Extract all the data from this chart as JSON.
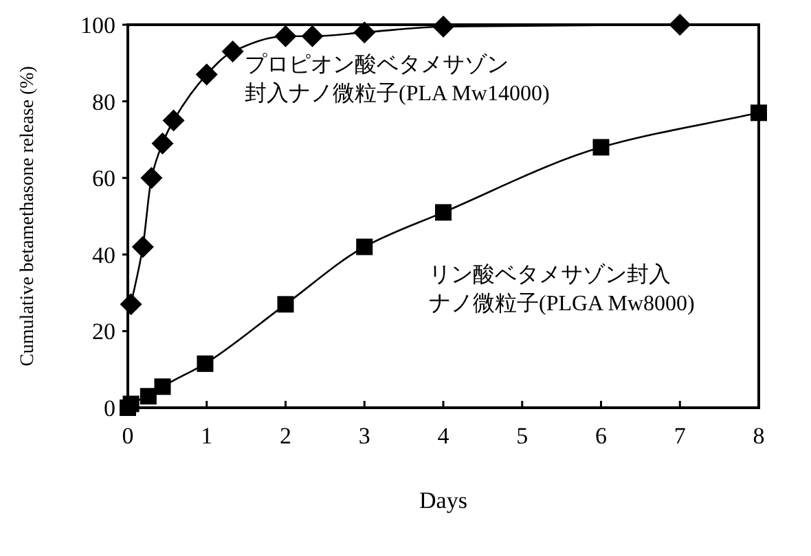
{
  "chart_data": {
    "type": "line",
    "xlabel": "Days",
    "ylabel": "Cumulative betamethasone release (%)",
    "xlim": [
      0,
      8
    ],
    "xticks": [
      0,
      1,
      2,
      3,
      4,
      5,
      6,
      7,
      8
    ],
    "ylim": [
      0,
      100
    ],
    "yticks": [
      0,
      20,
      40,
      60,
      80,
      100
    ],
    "grid": false,
    "legend": false,
    "series": [
      {
        "name": "プロピオン酸ベタメサゾン封入ナノ微粒子(PLA Mw14000)",
        "color": "#000000",
        "marker": "diamond",
        "x": [
          0.04,
          0.19,
          0.3,
          0.44,
          0.58,
          1,
          1.33,
          2,
          2.34,
          3,
          4,
          7
        ],
        "values": [
          27,
          42,
          60,
          69,
          75,
          87,
          93,
          97,
          97,
          98,
          99.5,
          100
        ]
      },
      {
        "name": "リン酸ベタメサゾン封入ナノ微粒子(PLGA Mw8000)",
        "color": "#000000",
        "marker": "square",
        "x": [
          0,
          0.04,
          0.26,
          0.44,
          0.98,
          2,
          3,
          4,
          6,
          8
        ],
        "values": [
          0,
          1,
          3,
          5.5,
          11.5,
          27,
          42,
          51,
          68,
          77
        ]
      }
    ]
  }
}
